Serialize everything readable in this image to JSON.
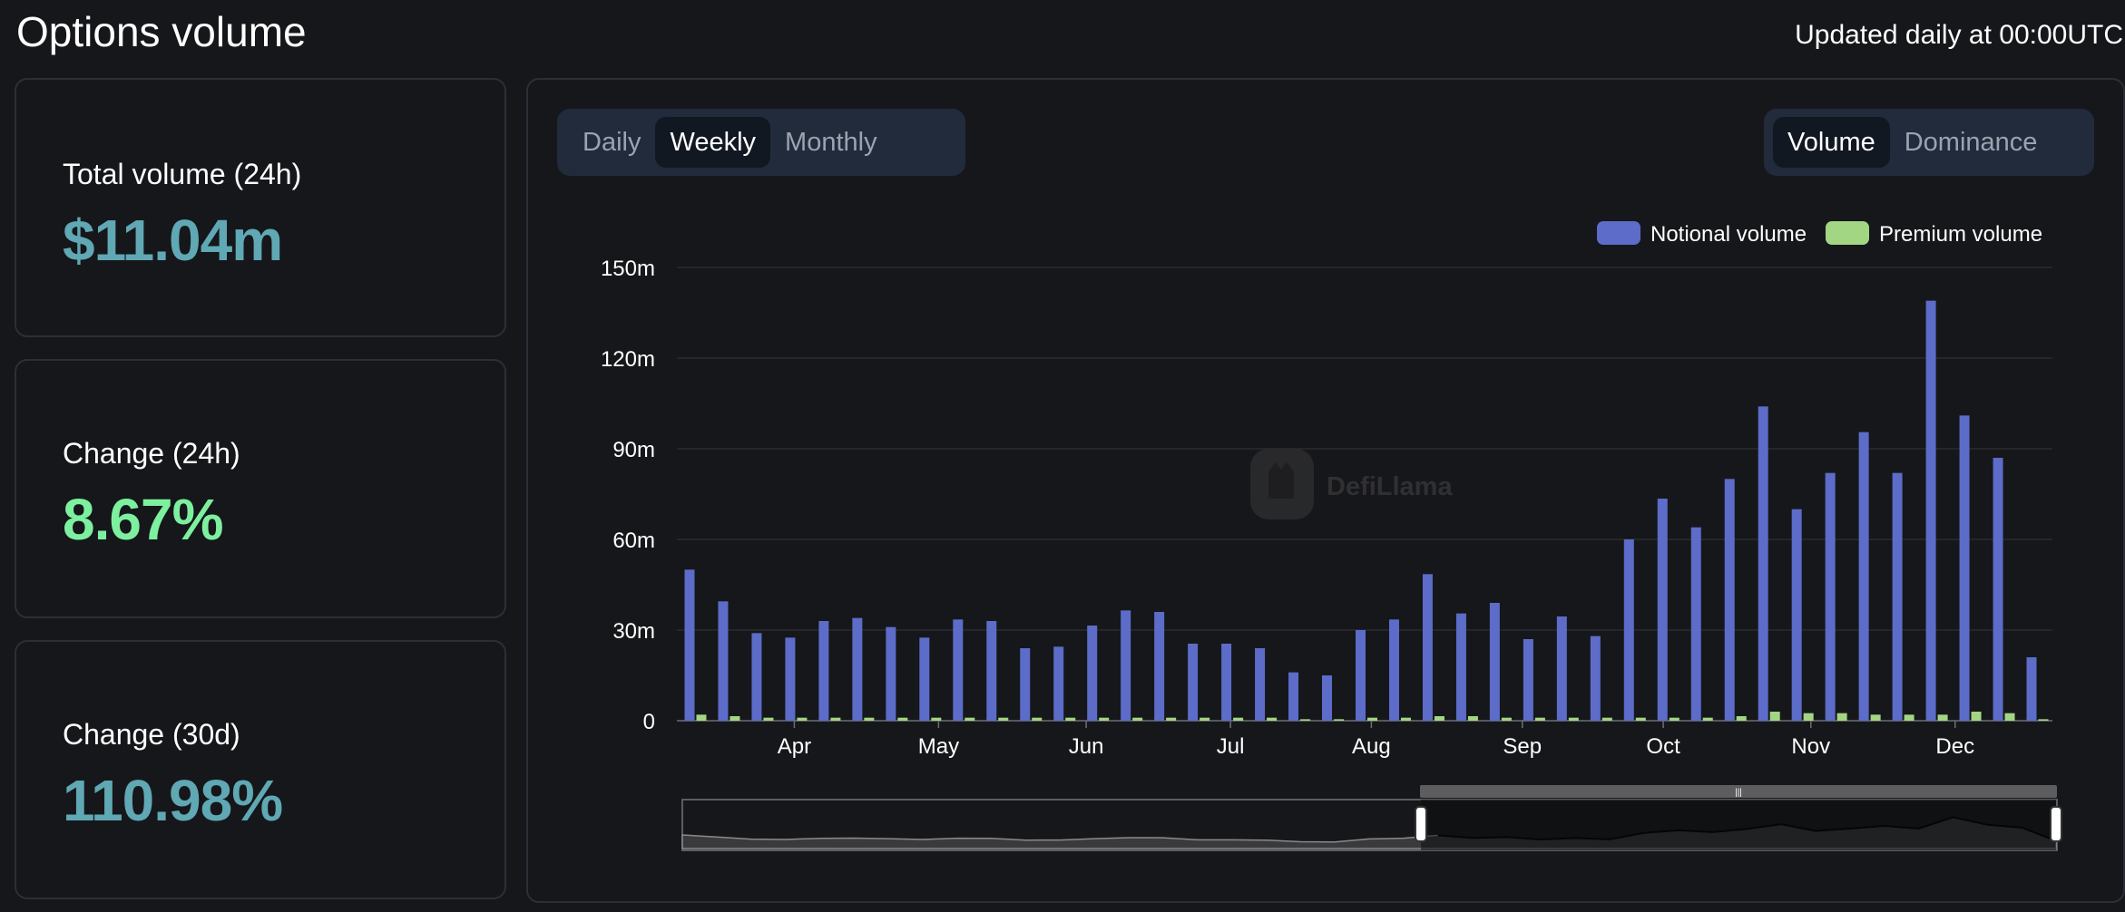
{
  "header": {
    "title": "Options volume",
    "updated": "Updated daily at 00:00UTC"
  },
  "cards": [
    {
      "label": "Total volume (24h)",
      "value": "$11.04m",
      "color": "#5fa8b4"
    },
    {
      "label": "Change (24h)",
      "value": "8.67%",
      "color": "#7df0a0"
    },
    {
      "label": "Change (30d)",
      "value": "110.98%",
      "color": "#5fa8b4"
    }
  ],
  "controls": {
    "period": [
      "Daily",
      "Weekly",
      "Monthly"
    ],
    "period_selected": "Weekly",
    "view": [
      "Volume",
      "Dominance"
    ],
    "view_selected": "Volume"
  },
  "watermark": "DefiLlama",
  "chart_data": {
    "type": "bar",
    "legend_position": "top-right",
    "grid": true,
    "ylim": [
      0,
      150000000
    ],
    "y_ticks": [
      "0",
      "30m",
      "60m",
      "90m",
      "120m",
      "150m"
    ],
    "x_tick_labels": [
      "Apr",
      "May",
      "Jun",
      "Jul",
      "Aug",
      "Sep",
      "Oct",
      "Nov",
      "Dec"
    ],
    "series": [
      {
        "name": "Notional volume",
        "color": "#5c6cc8",
        "values": [
          50,
          39.5,
          29,
          27.5,
          33,
          34,
          31,
          27.5,
          33.5,
          33,
          24,
          24.5,
          31.5,
          36.5,
          36,
          25.5,
          25.5,
          24,
          16,
          15,
          30,
          33.5,
          48.5,
          35.5,
          39,
          27,
          34.5,
          28,
          60,
          73.5,
          64,
          80,
          104,
          70,
          82,
          95.5,
          82,
          139,
          101,
          87,
          21
        ]
      },
      {
        "name": "Premium volume",
        "color": "#a3d683",
        "values": [
          2,
          1.5,
          1,
          1,
          1,
          1,
          1,
          1,
          1,
          1,
          1,
          1,
          1,
          1,
          1,
          1,
          1,
          1,
          0.5,
          0.5,
          1,
          1,
          1.5,
          1.5,
          1,
          1,
          1,
          1,
          1,
          1,
          1,
          1.5,
          3,
          2.5,
          2.5,
          2,
          2,
          2,
          3,
          2.5,
          0.5
        ]
      }
    ],
    "value_unit": "millions"
  }
}
